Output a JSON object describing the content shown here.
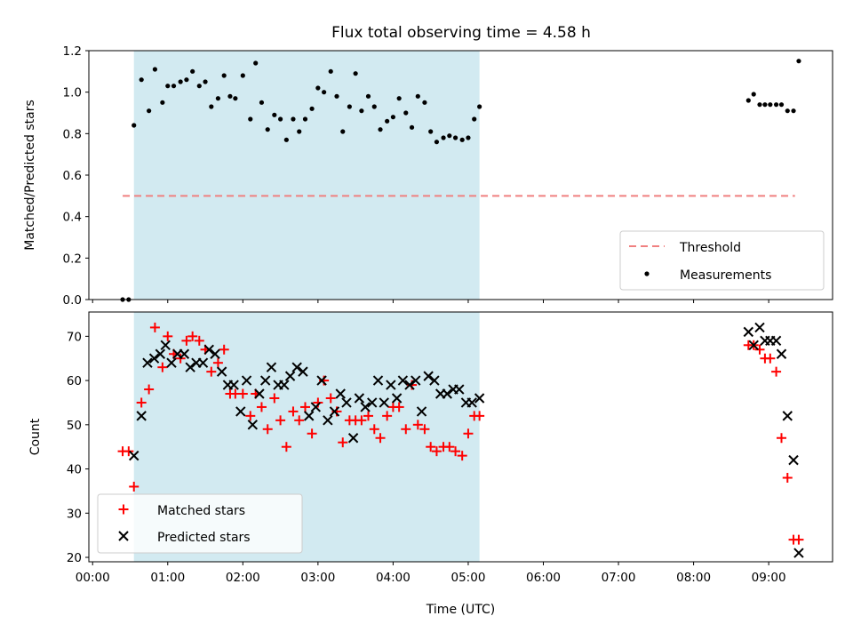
{
  "chart_data": [
    {
      "type": "scatter",
      "title": "Flux total observing time = 4.58 h",
      "xlabel": "",
      "ylabel": "Matched/Predicted stars",
      "ylim": [
        0,
        1.2
      ],
      "yticks": [
        "0.0",
        "0.2",
        "0.4",
        "0.6",
        "0.8",
        "1.0",
        "1.2"
      ],
      "shaded_span_hours": [
        0.55,
        5.15
      ],
      "shade_color": "#add8e6",
      "threshold": {
        "name": "Threshold",
        "value": 0.5,
        "x_range": [
          0.4,
          9.35
        ],
        "color": "#f08080"
      },
      "series": [
        {
          "name": "Measurements",
          "color": "#000000",
          "x": [
            0.4,
            0.48,
            0.55,
            0.65,
            0.75,
            0.83,
            0.93,
            1.0,
            1.08,
            1.17,
            1.25,
            1.33,
            1.42,
            1.5,
            1.58,
            1.67,
            1.75,
            1.83,
            1.9,
            2.0,
            2.1,
            2.17,
            2.25,
            2.33,
            2.42,
            2.5,
            2.58,
            2.67,
            2.75,
            2.83,
            2.92,
            3.0,
            3.08,
            3.17,
            3.25,
            3.33,
            3.42,
            3.5,
            3.58,
            3.67,
            3.75,
            3.83,
            3.92,
            4.0,
            4.08,
            4.17,
            4.25,
            4.33,
            4.42,
            4.5,
            4.58,
            4.67,
            4.75,
            4.83,
            4.92,
            5.0,
            5.08,
            5.15,
            8.73,
            8.8,
            8.88,
            8.95,
            9.02,
            9.1,
            9.17,
            9.25,
            9.33,
            9.4
          ],
          "y": [
            0.0,
            0.0,
            0.84,
            1.06,
            0.91,
            1.11,
            0.95,
            1.03,
            1.03,
            1.05,
            1.06,
            1.1,
            1.03,
            1.05,
            0.93,
            0.97,
            1.08,
            0.98,
            0.97,
            1.08,
            0.87,
            1.14,
            0.95,
            0.82,
            0.89,
            0.87,
            0.77,
            0.87,
            0.81,
            0.87,
            0.92,
            1.02,
            1.0,
            1.1,
            0.98,
            0.81,
            0.93,
            1.09,
            0.91,
            0.98,
            0.93,
            0.82,
            0.86,
            0.88,
            0.97,
            0.9,
            0.83,
            0.98,
            0.95,
            0.81,
            0.76,
            0.78,
            0.79,
            0.78,
            0.77,
            0.78,
            0.87,
            0.93,
            0.96,
            0.99,
            0.94,
            0.94,
            0.94,
            0.94,
            0.94,
            0.91,
            0.91,
            1.15
          ]
        }
      ],
      "legend": {
        "position": "lower right",
        "entries": [
          "Threshold",
          "Measurements"
        ]
      },
      "grid": false
    },
    {
      "type": "scatter",
      "title": "",
      "xlabel": "Time (UTC)",
      "ylabel": "Count",
      "ylim": [
        19,
        75.5
      ],
      "yticks": [
        "20",
        "30",
        "40",
        "50",
        "60",
        "70"
      ],
      "xlim": [
        -0.05,
        9.85
      ],
      "xticks": [
        "00:00",
        "01:00",
        "02:00",
        "03:00",
        "04:00",
        "05:00",
        "06:00",
        "07:00",
        "08:00",
        "09:00"
      ],
      "shaded_span_hours": [
        0.55,
        5.15
      ],
      "shade_color": "#add8e6",
      "series": [
        {
          "name": "Matched stars",
          "marker": "+",
          "color": "#ff0000",
          "x": [
            0.4,
            0.48,
            0.55,
            0.65,
            0.75,
            0.83,
            0.93,
            1.0,
            1.08,
            1.17,
            1.25,
            1.33,
            1.42,
            1.5,
            1.58,
            1.67,
            1.75,
            1.83,
            1.9,
            2.0,
            2.1,
            2.17,
            2.25,
            2.33,
            2.42,
            2.5,
            2.58,
            2.67,
            2.75,
            2.83,
            2.92,
            3.0,
            3.08,
            3.17,
            3.25,
            3.33,
            3.42,
            3.5,
            3.58,
            3.67,
            3.75,
            3.83,
            3.92,
            4.0,
            4.08,
            4.17,
            4.25,
            4.33,
            4.42,
            4.5,
            4.58,
            4.67,
            4.75,
            4.83,
            4.92,
            5.0,
            5.08,
            5.15,
            8.73,
            8.8,
            8.88,
            8.95,
            9.02,
            9.1,
            9.17,
            9.25,
            9.33,
            9.4
          ],
          "y": [
            44,
            44,
            36,
            55,
            58,
            72,
            63,
            70,
            66,
            65,
            69,
            70,
            69,
            67,
            62,
            64,
            67,
            57,
            57,
            57,
            52,
            57,
            54,
            49,
            56,
            51,
            45,
            53,
            51,
            54,
            48,
            55,
            60,
            56,
            53,
            46,
            51,
            51,
            51,
            52,
            49,
            47,
            52,
            54,
            54,
            49,
            59,
            50,
            49,
            45,
            44,
            45,
            45,
            44,
            43,
            48,
            52,
            52,
            68,
            68,
            67,
            65,
            65,
            62,
            47,
            38,
            24,
            24
          ]
        },
        {
          "name": "Predicted stars",
          "marker": "x",
          "color": "#000000",
          "x": [
            0.55,
            0.65,
            0.73,
            0.82,
            0.9,
            0.97,
            1.05,
            1.13,
            1.22,
            1.3,
            1.38,
            1.47,
            1.55,
            1.63,
            1.72,
            1.8,
            1.88,
            1.97,
            2.05,
            2.13,
            2.22,
            2.3,
            2.38,
            2.47,
            2.55,
            2.63,
            2.72,
            2.8,
            2.88,
            2.97,
            3.05,
            3.13,
            3.22,
            3.3,
            3.38,
            3.47,
            3.55,
            3.63,
            3.72,
            3.8,
            3.88,
            3.97,
            4.05,
            4.13,
            4.22,
            4.3,
            4.38,
            4.47,
            4.55,
            4.63,
            4.72,
            4.8,
            4.88,
            4.97,
            5.05,
            5.15,
            8.73,
            8.8,
            8.88,
            8.95,
            9.02,
            9.1,
            9.17,
            9.25,
            9.33,
            9.4
          ],
          "y": [
            43,
            52,
            64,
            65,
            66,
            68,
            64,
            66,
            66,
            63,
            64,
            64,
            67,
            66,
            62,
            59,
            59,
            53,
            60,
            50,
            57,
            60,
            63,
            59,
            59,
            61,
            63,
            62,
            52,
            54,
            60,
            51,
            53,
            57,
            55,
            47,
            56,
            54,
            55,
            60,
            55,
            59,
            56,
            60,
            59,
            60,
            53,
            61,
            60,
            57,
            57,
            58,
            58,
            55,
            55,
            56,
            71,
            68,
            72,
            69,
            69,
            69,
            66,
            52,
            42,
            21
          ]
        }
      ],
      "legend": {
        "position": "lower left",
        "entries": [
          "Matched stars",
          "Predicted stars"
        ]
      },
      "grid": false
    }
  ]
}
